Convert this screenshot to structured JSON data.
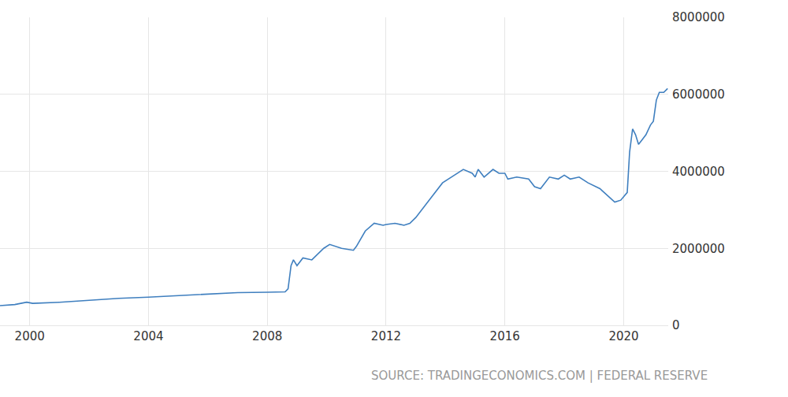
{
  "chart_data": {
    "type": "line",
    "source": "SOURCE: TRADINGECONOMICS.COM | FEDERAL RESERVE",
    "x": [
      1999.0,
      1999.5,
      1999.9,
      2000.1,
      2001.0,
      2002.0,
      2003.0,
      2004.0,
      2005.0,
      2006.0,
      2007.0,
      2008.0,
      2008.6,
      2008.7,
      2008.8,
      2008.88,
      2009.0,
      2009.2,
      2009.5,
      2009.9,
      2010.1,
      2010.5,
      2010.9,
      2011.0,
      2011.3,
      2011.6,
      2011.9,
      2012.0,
      2012.3,
      2012.6,
      2012.8,
      2013.0,
      2013.5,
      2013.9,
      2014.3,
      2014.6,
      2014.9,
      2015.0,
      2015.1,
      2015.3,
      2015.6,
      2015.8,
      2016.0,
      2016.1,
      2016.4,
      2016.8,
      2017.0,
      2017.2,
      2017.5,
      2017.8,
      2018.0,
      2018.2,
      2018.5,
      2018.8,
      2019.2,
      2019.5,
      2019.7,
      2019.9,
      2020.0,
      2020.12,
      2020.2,
      2020.3,
      2020.4,
      2020.5,
      2020.6,
      2020.75,
      2020.9,
      2021.0,
      2021.1,
      2021.2,
      2021.35,
      2021.48
    ],
    "values": [
      510000,
      540000,
      600000,
      570000,
      600000,
      650000,
      700000,
      730000,
      770000,
      810000,
      850000,
      860000,
      870000,
      950000,
      1550000,
      1700000,
      1550000,
      1750000,
      1700000,
      2000000,
      2100000,
      2000000,
      1950000,
      2050000,
      2450000,
      2650000,
      2600000,
      2620000,
      2650000,
      2600000,
      2650000,
      2800000,
      3300000,
      3700000,
      3900000,
      4050000,
      3950000,
      3850000,
      4050000,
      3850000,
      4050000,
      3950000,
      3950000,
      3800000,
      3850000,
      3800000,
      3600000,
      3550000,
      3850000,
      3800000,
      3900000,
      3800000,
      3850000,
      3700000,
      3550000,
      3350000,
      3200000,
      3250000,
      3350000,
      3450000,
      4500000,
      5100000,
      4950000,
      4700000,
      4800000,
      4950000,
      5200000,
      5300000,
      5850000,
      6050000,
      6050000,
      6150000
    ],
    "color": "#3f7fbf",
    "xlim": [
      1999.0,
      2021.5
    ],
    "xticks": [
      2000,
      2004,
      2008,
      2012,
      2016,
      2020
    ],
    "ylim": [
      0,
      8000000
    ],
    "yticks": [
      0,
      2000000,
      4000000,
      6000000,
      8000000
    ],
    "grid": true
  }
}
